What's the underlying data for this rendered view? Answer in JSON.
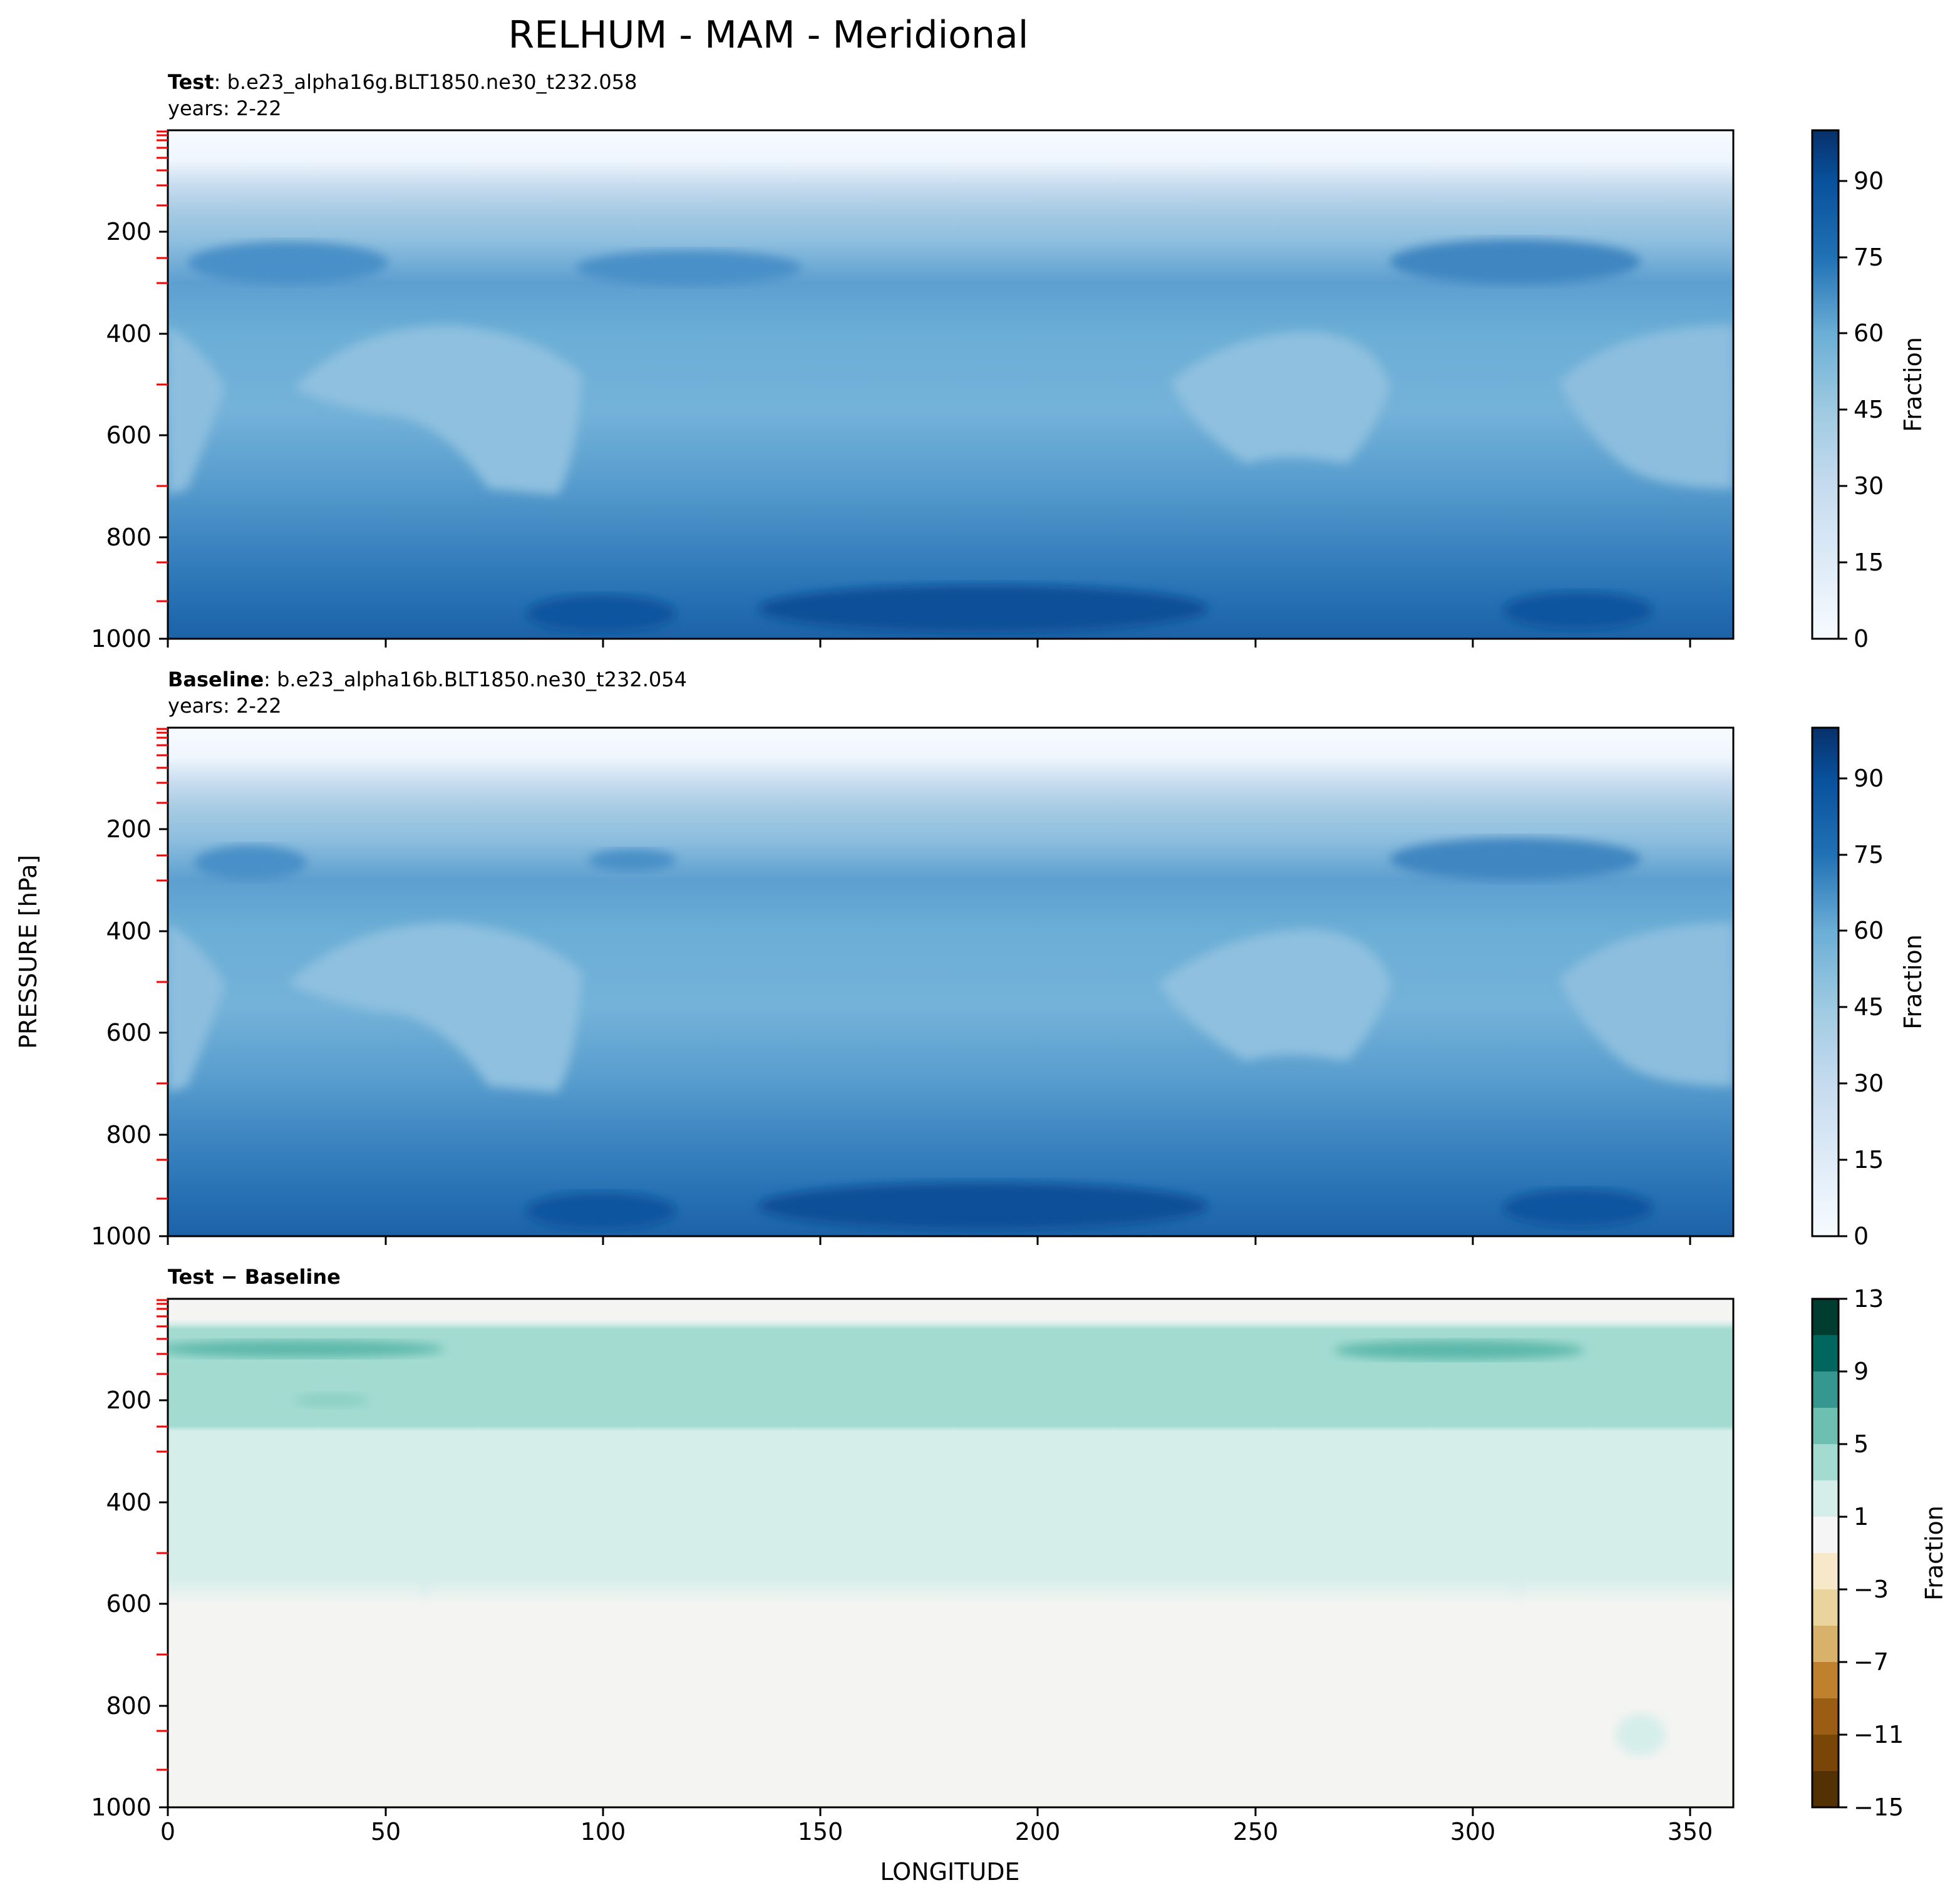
{
  "figure": {
    "title": "RELHUM - MAM - Meridional",
    "xlabel": "LONGITUDE",
    "ylabel": "PRESSURE [hPa]"
  },
  "panels": [
    {
      "id": "test",
      "title_bold": "Test",
      "title_rest": ": b.e23_alpha16g.BLT1850.ne30_t232.058",
      "subtitle": "years: 2-22",
      "colorbar_label": "Fraction",
      "colorbar_ticks": [
        "0",
        "15",
        "30",
        "45",
        "60",
        "75",
        "90"
      ]
    },
    {
      "id": "baseline",
      "title_bold": "Baseline",
      "title_rest": ": b.e23_alpha16b.BLT1850.ne30_t232.054",
      "subtitle": "years: 2-22",
      "colorbar_label": "Fraction",
      "colorbar_ticks": [
        "0",
        "15",
        "30",
        "45",
        "60",
        "75",
        "90"
      ]
    },
    {
      "id": "diff",
      "title_bold": "Test − Baseline",
      "title_rest": "",
      "subtitle": "",
      "colorbar_label": "Fraction",
      "colorbar_ticks": [
        "−15",
        "−11",
        "−7",
        "−3",
        "1",
        "5",
        "9",
        "13"
      ]
    }
  ],
  "axes": {
    "x_ticks": [
      "0",
      "50",
      "100",
      "150",
      "200",
      "250",
      "300",
      "350"
    ],
    "y_ticks": [
      "200",
      "400",
      "600",
      "800",
      "1000"
    ]
  },
  "colors": {
    "rh_scale": [
      "#f7fbff",
      "#deebf7",
      "#c6dbef",
      "#9ecae1",
      "#6baed6",
      "#4292c6",
      "#2171b5",
      "#08519c",
      "#08306b"
    ],
    "diff_scale": [
      "#543005",
      "#8c510a",
      "#bf812d",
      "#dfc27d",
      "#f6e8c3",
      "#f5f5f5",
      "#c7eae5",
      "#80cdc1",
      "#35978f",
      "#01665e",
      "#003c30"
    ],
    "level_ticks": "#ff0000"
  },
  "chart_data": [
    {
      "type": "heatmap",
      "name": "Test",
      "x_range": [
        0,
        360
      ],
      "y_range": [
        0,
        1000
      ],
      "y_inverted": true,
      "levels": [
        0,
        5,
        10,
        15,
        20,
        25,
        30,
        35,
        40,
        45,
        50,
        55,
        60,
        65,
        70,
        75,
        80,
        85,
        90,
        95,
        100
      ],
      "colorbar_range": [
        0,
        100
      ],
      "description_values": {
        "top_levels_near_0hPa": 2,
        "upper_trop_100hPa": 35,
        "jet_level_250hPa": 60,
        "mid_trop_subtropics_500hPa": 38,
        "mid_trop_tropics_500hPa": 50,
        "boundary_layer_950hPa": 82,
        "max_boundary_layer": 90
      }
    },
    {
      "type": "heatmap",
      "name": "Baseline",
      "x_range": [
        0,
        360
      ],
      "y_range": [
        0,
        1000
      ],
      "y_inverted": true,
      "levels": [
        0,
        5,
        10,
        15,
        20,
        25,
        30,
        35,
        40,
        45,
        50,
        55,
        60,
        65,
        70,
        75,
        80,
        85,
        90,
        95,
        100
      ],
      "colorbar_range": [
        0,
        100
      ],
      "description_values": {
        "top_levels_near_0hPa": 2,
        "upper_trop_100hPa": 30,
        "jet_level_250hPa": 58,
        "mid_trop_subtropics_500hPa": 36,
        "mid_trop_tropics_500hPa": 50,
        "boundary_layer_950hPa": 82,
        "max_boundary_layer": 90
      }
    },
    {
      "type": "heatmap",
      "name": "Test − Baseline",
      "x_range": [
        0,
        360
      ],
      "y_range": [
        0,
        1000
      ],
      "y_inverted": true,
      "levels": [
        -15,
        -13,
        -11,
        -9,
        -7,
        -5,
        -3,
        -1,
        1,
        3,
        5,
        7,
        9,
        11,
        13
      ],
      "colorbar_range": [
        -15,
        13
      ],
      "description_values": {
        "band_100hPa": 6,
        "band_100hPa_peak": 8,
        "upper_trop_150_300hPa": 2,
        "lower_trop": 0
      }
    }
  ]
}
